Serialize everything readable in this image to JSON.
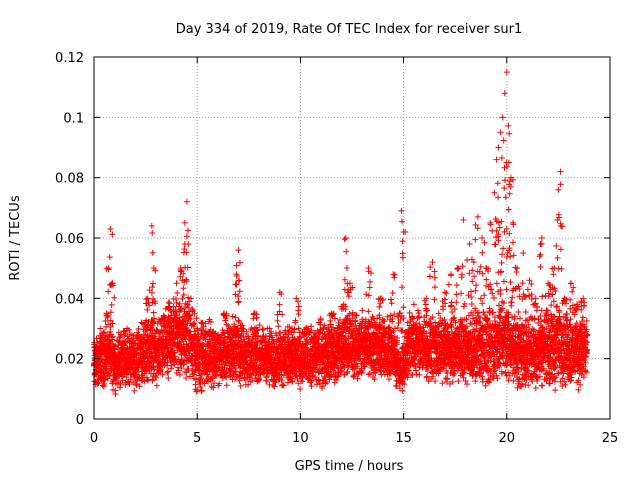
{
  "chart_data": {
    "type": "scatter",
    "title": "Day 334 of 2019, Rate Of TEC Index for receiver sur1",
    "xlabel": "GPS time / hours",
    "ylabel": "ROTI / TECUs",
    "xlim": [
      0,
      25
    ],
    "ylim": [
      0,
      0.12
    ],
    "xticks": [
      0,
      5,
      10,
      15,
      20,
      25
    ],
    "xtick_labels": [
      "0",
      "5",
      "10",
      "15",
      "20",
      "25"
    ],
    "yticks": [
      0,
      0.02,
      0.04,
      0.06,
      0.08,
      0.1,
      0.12
    ],
    "ytick_labels": [
      "0",
      "0.02",
      "0.04",
      "0.06",
      "0.08",
      "0.1",
      "0.12"
    ],
    "grid": true,
    "legend": "none",
    "marker": "+",
    "color": "#ff0000",
    "series": [
      {
        "name": "ROTI",
        "x": [
          0.0,
          0.3,
          0.6,
          0.7,
          0.8,
          0.9,
          1.0,
          1.3,
          1.6,
          2.0,
          2.3,
          2.6,
          2.8,
          2.9,
          3.0,
          3.3,
          3.6,
          4.0,
          4.2,
          4.4,
          4.5,
          4.7,
          5.0,
          5.3,
          5.6,
          6.0,
          6.3,
          6.6,
          6.9,
          7.0,
          7.2,
          7.5,
          7.8,
          8.1,
          8.4,
          8.7,
          9.0,
          9.3,
          9.6,
          9.8,
          10.0,
          10.3,
          10.6,
          10.9,
          11.2,
          11.5,
          11.8,
          12.1,
          12.2,
          12.4,
          12.7,
          13.0,
          13.3,
          13.6,
          13.9,
          14.2,
          14.5,
          14.8,
          14.9,
          15.0,
          15.2,
          15.5,
          15.8,
          16.1,
          16.4,
          16.7,
          17.0,
          17.3,
          17.6,
          17.9,
          18.2,
          18.4,
          18.6,
          18.8,
          19.0,
          19.2,
          19.4,
          19.5,
          19.6,
          19.7,
          19.8,
          19.9,
          20.0,
          20.1,
          20.2,
          20.3,
          20.5,
          20.8,
          21.1,
          21.4,
          21.7,
          22.0,
          22.3,
          22.5,
          22.6,
          22.8,
          23.1,
          23.4,
          23.7,
          23.9
        ],
        "y": [
          0.018,
          0.03,
          0.035,
          0.05,
          0.063,
          0.045,
          0.02,
          0.028,
          0.03,
          0.022,
          0.032,
          0.04,
          0.064,
          0.05,
          0.025,
          0.033,
          0.028,
          0.045,
          0.05,
          0.058,
          0.072,
          0.04,
          0.03,
          0.024,
          0.033,
          0.028,
          0.035,
          0.03,
          0.048,
          0.056,
          0.03,
          0.024,
          0.035,
          0.026,
          0.03,
          0.022,
          0.042,
          0.028,
          0.03,
          0.04,
          0.02,
          0.03,
          0.024,
          0.032,
          0.028,
          0.035,
          0.03,
          0.038,
          0.06,
          0.045,
          0.03,
          0.036,
          0.05,
          0.032,
          0.04,
          0.03,
          0.048,
          0.035,
          0.069,
          0.062,
          0.032,
          0.038,
          0.03,
          0.04,
          0.052,
          0.035,
          0.042,
          0.048,
          0.05,
          0.066,
          0.058,
          0.052,
          0.067,
          0.06,
          0.05,
          0.065,
          0.075,
          0.086,
          0.09,
          0.095,
          0.1,
          0.108,
          0.115,
          0.085,
          0.08,
          0.065,
          0.05,
          0.055,
          0.046,
          0.04,
          0.06,
          0.045,
          0.05,
          0.076,
          0.082,
          0.04,
          0.045,
          0.038,
          0.04,
          0.028
        ],
        "base_min": [
          0.008,
          0.01,
          0.01,
          0.012,
          0.011,
          0.01,
          0.008,
          0.009,
          0.01,
          0.009,
          0.01,
          0.011,
          0.012,
          0.012,
          0.009,
          0.01,
          0.01,
          0.012,
          0.011,
          0.011,
          0.011,
          0.01,
          0.007,
          0.009,
          0.01,
          0.01,
          0.01,
          0.011,
          0.011,
          0.011,
          0.01,
          0.009,
          0.01,
          0.01,
          0.01,
          0.009,
          0.011,
          0.01,
          0.01,
          0.01,
          0.009,
          0.01,
          0.008,
          0.01,
          0.01,
          0.011,
          0.011,
          0.012,
          0.013,
          0.012,
          0.012,
          0.012,
          0.013,
          0.012,
          0.012,
          0.011,
          0.012,
          0.008,
          0.008,
          0.009,
          0.012,
          0.013,
          0.012,
          0.012,
          0.012,
          0.011,
          0.011,
          0.011,
          0.012,
          0.011,
          0.01,
          0.009,
          0.009,
          0.01,
          0.01,
          0.011,
          0.011,
          0.012,
          0.012,
          0.012,
          0.012,
          0.012,
          0.011,
          0.011,
          0.011,
          0.01,
          0.009,
          0.009,
          0.01,
          0.01,
          0.01,
          0.01,
          0.009,
          0.01,
          0.01,
          0.009,
          0.009,
          0.009,
          0.01,
          0.011
        ],
        "base_max": [
          0.028,
          0.03,
          0.032,
          0.03,
          0.03,
          0.03,
          0.028,
          0.03,
          0.032,
          0.03,
          0.032,
          0.036,
          0.036,
          0.035,
          0.034,
          0.036,
          0.04,
          0.045,
          0.046,
          0.045,
          0.045,
          0.04,
          0.036,
          0.034,
          0.033,
          0.032,
          0.034,
          0.035,
          0.036,
          0.035,
          0.033,
          0.032,
          0.033,
          0.032,
          0.032,
          0.03,
          0.032,
          0.031,
          0.032,
          0.032,
          0.03,
          0.032,
          0.032,
          0.034,
          0.033,
          0.034,
          0.035,
          0.036,
          0.038,
          0.037,
          0.036,
          0.036,
          0.038,
          0.037,
          0.036,
          0.035,
          0.034,
          0.024,
          0.024,
          0.026,
          0.036,
          0.038,
          0.036,
          0.034,
          0.035,
          0.035,
          0.036,
          0.035,
          0.036,
          0.036,
          0.036,
          0.036,
          0.038,
          0.038,
          0.04,
          0.04,
          0.04,
          0.04,
          0.04,
          0.04,
          0.04,
          0.04,
          0.04,
          0.04,
          0.04,
          0.038,
          0.036,
          0.035,
          0.036,
          0.036,
          0.038,
          0.04,
          0.04,
          0.04,
          0.04,
          0.038,
          0.036,
          0.036,
          0.036,
          0.034
        ]
      }
    ]
  }
}
